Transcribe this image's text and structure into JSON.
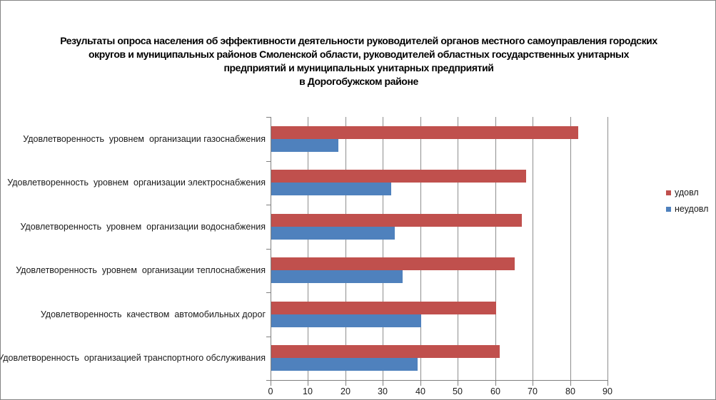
{
  "chart_data": {
    "type": "bar",
    "orientation": "horizontal",
    "title_lines": [
      "Результаты опроса населения об эффективности деятельности руководителей органов местного самоуправления городских",
      "округов и муниципальных районов Смоленской области, руководителей областных государственных унитарных",
      "предприятий и муниципальных унитарных предприятий",
      "в Дорогобужском районе"
    ],
    "categories": [
      "Удовлетворенность  уровнем  организации газоснабжения",
      "Удовлетворенность  уровнем  организации электроснабжения",
      "Удовлетворенность  уровнем  организации водоснабжения",
      "Удовлетворенность  уровнем  организации теплоснабжения",
      "Удовлетворенность  качеством  автомобильных дорог",
      "Удовлетворенность  организацией транспортного обслуживания"
    ],
    "series": [
      {
        "name": "удовл",
        "color": "#C0504D",
        "values": [
          82,
          68,
          67,
          65,
          60,
          61
        ]
      },
      {
        "name": "неудовл",
        "color": "#4F81BD",
        "values": [
          18,
          32,
          33,
          35,
          40,
          39
        ]
      }
    ],
    "xlim": [
      0,
      90
    ],
    "x_ticks": [
      0,
      10,
      20,
      30,
      40,
      50,
      60,
      70,
      80,
      90
    ],
    "xlabel": "",
    "ylabel": "",
    "grid": true,
    "legend_position": "right"
  }
}
